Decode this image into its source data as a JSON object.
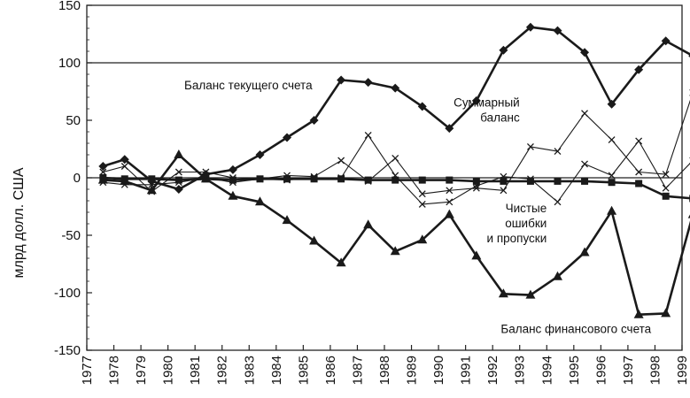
{
  "chart_data": {
    "type": "line",
    "title": "",
    "xlabel": "",
    "ylabel": "млрд долл. США",
    "xlim": [
      1977,
      1999
    ],
    "ylim": [
      -150,
      150
    ],
    "x_ticks": [
      "1977",
      "1978",
      "1979",
      "1980",
      "1981",
      "1982",
      "1983",
      "1984",
      "1985",
      "1986",
      "1987",
      "1988",
      "1989",
      "1990",
      "1991",
      "1992",
      "1993",
      "1994",
      "1995",
      "1996",
      "1997",
      "1998",
      "1999"
    ],
    "y_ticks": [
      "150",
      "100",
      "50",
      "0",
      "-50",
      "-100",
      "-150"
    ],
    "reference_lines": [
      100,
      0
    ],
    "grid": false,
    "x": [
      1977.6,
      1978.4,
      1979.4,
      1980.4,
      1981.4,
      1982.4,
      1983.4,
      1984.4,
      1985.4,
      1986.4,
      1987.4,
      1988.4,
      1989.4,
      1990.4,
      1991.4,
      1992.4,
      1993.4,
      1994.4,
      1995.4,
      1996.4,
      1997.4,
      1998.4,
      1999.4
    ],
    "series": [
      {
        "marker": "diamond",
        "color": "#1a1a1a",
        "values": [
          10,
          16,
          -3,
          -10,
          3,
          7,
          20,
          35,
          50,
          85,
          83,
          78,
          62,
          43,
          67,
          111,
          131,
          128,
          109,
          64,
          94,
          119,
          106
        ]
      },
      {
        "marker": "triangle",
        "color": "#1a1a1a",
        "values": [
          -2,
          -3,
          -11,
          20,
          -1,
          -16,
          -21,
          -37,
          -55,
          -74,
          -41,
          -64,
          -54,
          -32,
          -68,
          -101,
          -102,
          -86,
          -65,
          -29,
          -119,
          -118,
          -32
        ]
      },
      {
        "marker": "square",
        "color": "#1a1a1a",
        "values": [
          0,
          -1,
          -1,
          -2,
          -1,
          -2,
          -1,
          -1,
          -1,
          -1,
          -2,
          -2,
          -2,
          -2,
          -3,
          -3,
          -3,
          -3,
          -3,
          -4,
          -5,
          -16,
          -18
        ]
      },
      {
        "marker": "x",
        "color": "#1a1a1a",
        "values": [
          5,
          10,
          -12,
          5,
          5,
          0,
          -1,
          2,
          1,
          15,
          -3,
          17,
          -14,
          -11,
          -9,
          -11,
          27,
          23,
          56,
          33,
          5,
          3,
          74
        ]
      },
      {
        "marker": "x",
        "color": "#1a1a1a",
        "values": [
          -4,
          -6,
          -6,
          -4,
          0,
          -4,
          -1,
          -2,
          0,
          0,
          37,
          2,
          -23,
          -21,
          -7,
          1,
          -1,
          -21,
          12,
          2,
          32,
          -9,
          15
        ]
      }
    ],
    "annotations": [
      {
        "lines": [
          "Баланс текущего счета"
        ],
        "anchor": "start",
        "x": 1980.6,
        "y": 77
      },
      {
        "lines": [
          "Суммарный",
          "баланс"
        ],
        "anchor": "end",
        "x": 1993.0,
        "y": 62
      },
      {
        "lines": [
          "Чистые",
          "ошибки",
          "и пропуски"
        ],
        "anchor": "end",
        "x": 1994.0,
        "y": -30
      },
      {
        "lines": [
          "Баланс финансового счета"
        ],
        "anchor": "start",
        "x": 1992.3,
        "y": -135
      }
    ]
  }
}
